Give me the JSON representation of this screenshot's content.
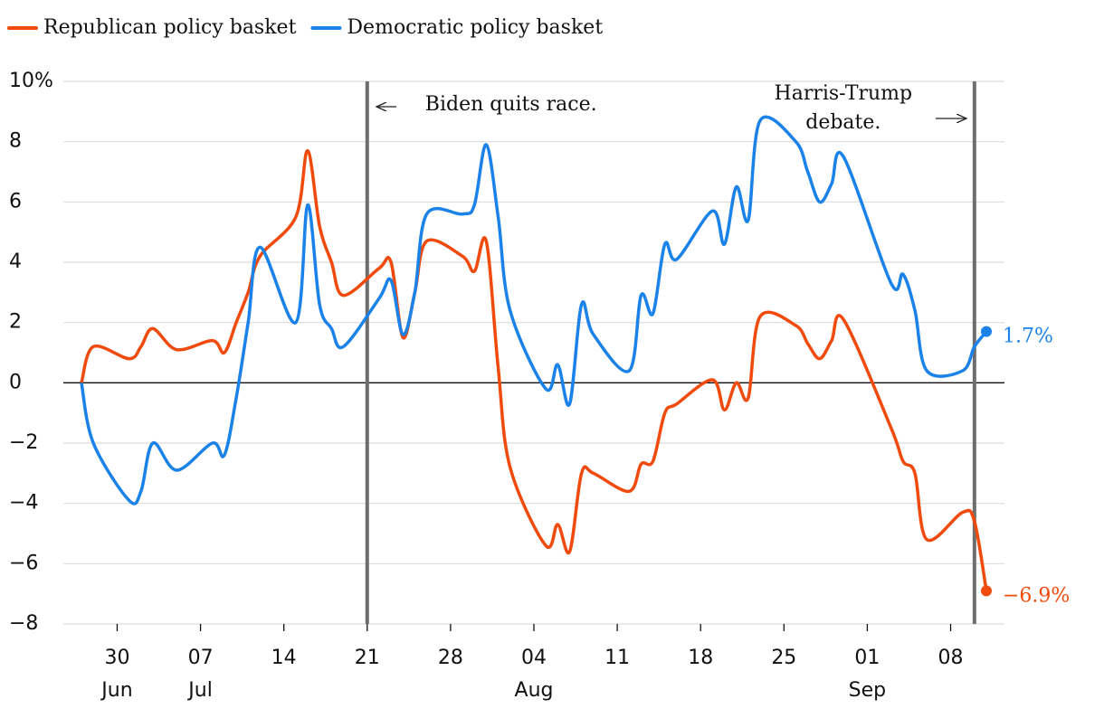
{
  "chart_data": {
    "type": "line",
    "legend": "top-left",
    "grid": true,
    "ylim": [
      -8,
      10
    ],
    "yticks": [
      {
        "value": -8,
        "label": "−8"
      },
      {
        "value": -6,
        "label": "−6"
      },
      {
        "value": -4,
        "label": "−4"
      },
      {
        "value": -2,
        "label": "−2"
      },
      0,
      2,
      4,
      6,
      8,
      {
        "value": 10,
        "label": "10%"
      }
    ],
    "xlim": [
      "06-27",
      "09-11"
    ],
    "xticks": [
      {
        "value": "06-30",
        "label": "30"
      },
      {
        "value": "07-07",
        "label": "07"
      },
      {
        "value": "07-14",
        "label": "14"
      },
      {
        "value": "07-21",
        "label": "21"
      },
      {
        "value": "07-28",
        "label": "28"
      },
      {
        "value": "08-04",
        "label": "04"
      },
      {
        "value": "08-11",
        "label": "11"
      },
      {
        "value": "08-18",
        "label": "18"
      },
      {
        "value": "08-25",
        "label": "25"
      },
      {
        "value": "09-01",
        "label": "01"
      },
      {
        "value": "09-08",
        "label": "08"
      }
    ],
    "xtick_months": [
      {
        "value": "06-30",
        "label": "Jun"
      },
      {
        "value": "07-07",
        "label": "Jul"
      },
      {
        "value": "08-04",
        "label": "Aug"
      },
      {
        "value": "09-01",
        "label": "Sep"
      }
    ],
    "annotations": [
      {
        "x": "07-21",
        "text": [
          "Biden quits race."
        ]
      },
      {
        "x": "09-10",
        "text": [
          "Harris-Trump",
          "debate."
        ]
      }
    ],
    "x": [
      "06-27",
      "06-28",
      "07-01",
      "07-02",
      "07-03",
      "07-05",
      "07-08",
      "07-09",
      "07-10",
      "07-11",
      "07-12",
      "07-15",
      "07-16",
      "07-17",
      "07-18",
      "07-19",
      "07-22",
      "07-23",
      "07-24",
      "07-25",
      "07-26",
      "07-29",
      "07-30",
      "07-31",
      "08-01",
      "08-02",
      "08-05",
      "08-06",
      "08-07",
      "08-08",
      "08-09",
      "08-12",
      "08-13",
      "08-14",
      "08-15",
      "08-16",
      "08-19",
      "08-20",
      "08-21",
      "08-22",
      "08-23",
      "08-26",
      "08-27",
      "08-28",
      "08-29",
      "08-30",
      "09-03",
      "09-04",
      "09-05",
      "09-06",
      "09-09",
      "09-10",
      "09-11"
    ],
    "series": [
      {
        "name": "Republican policy basket",
        "color": "#f04a0c",
        "end_label": "−6.9%",
        "values": [
          0,
          1.2,
          0.8,
          1.2,
          1.8,
          1.1,
          1.4,
          1.0,
          2.0,
          3.0,
          4.2,
          5.5,
          7.7,
          5.2,
          4.0,
          2.9,
          3.8,
          4.0,
          1.5,
          3.0,
          4.7,
          4.2,
          3.7,
          4.7,
          0.5,
          -2.8,
          -5.4,
          -4.7,
          -5.6,
          -3.0,
          -3.0,
          -3.6,
          -2.7,
          -2.6,
          -1.0,
          -0.7,
          0.1,
          -0.9,
          0.0,
          -0.5,
          2.2,
          1.9,
          1.3,
          0.8,
          1.4,
          2.1,
          -1.5,
          -2.6,
          -3.0,
          -5.2,
          -4.3,
          -4.6,
          -6.9
        ]
      },
      {
        "name": "Democratic policy basket",
        "color": "#1a82e8",
        "end_label": "1.7%",
        "values": [
          0,
          -2.0,
          -3.9,
          -3.6,
          -2.0,
          -2.9,
          -2.0,
          -2.4,
          -0.5,
          2.0,
          4.5,
          2.0,
          5.9,
          2.6,
          1.8,
          1.2,
          2.8,
          3.4,
          1.6,
          3.0,
          5.6,
          5.6,
          5.9,
          7.9,
          5.5,
          2.4,
          -0.2,
          0.6,
          -0.7,
          2.6,
          1.6,
          0.4,
          2.9,
          2.3,
          4.6,
          4.1,
          5.7,
          4.6,
          6.5,
          5.4,
          8.7,
          8.0,
          7.0,
          6.0,
          6.6,
          7.5,
          3.3,
          3.6,
          2.4,
          0.4,
          0.4,
          1.2,
          1.7
        ]
      }
    ]
  }
}
